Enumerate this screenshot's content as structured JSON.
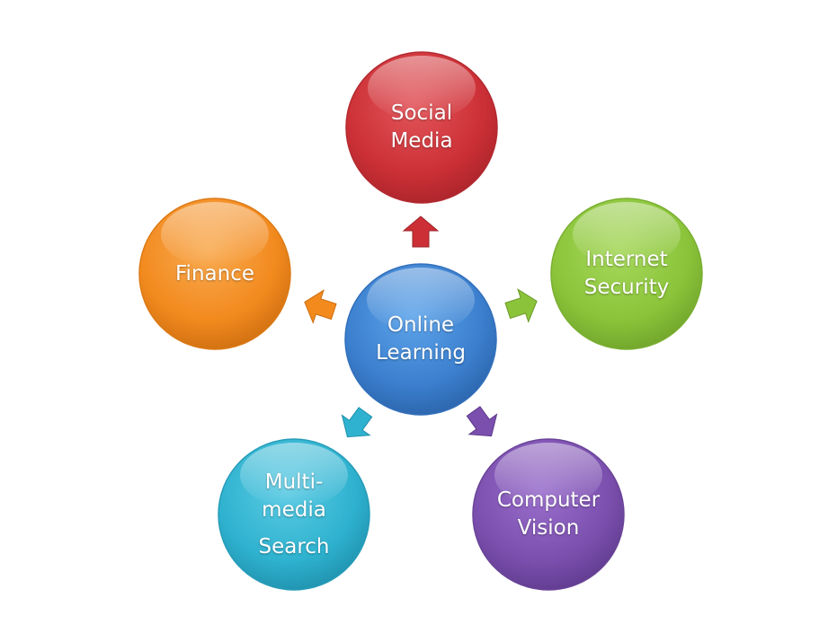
{
  "diagram": {
    "center": {
      "line1": "Online",
      "line2": "Learning",
      "color": "#3b7fce"
    },
    "nodes": {
      "social": {
        "line1": "Social",
        "line2": "Media",
        "color": "#cc3036"
      },
      "security": {
        "line1": "Internet",
        "line2": "Security",
        "color": "#8bc43a"
      },
      "vision": {
        "line1": "Computer",
        "line2": "Vision",
        "color": "#7b4fae"
      },
      "search": {
        "line1": "Multi-",
        "line2": "media",
        "line3": "Search",
        "color": "#2eb2cf"
      },
      "finance": {
        "line1": "Finance",
        "color": "#f28a1e"
      }
    }
  }
}
